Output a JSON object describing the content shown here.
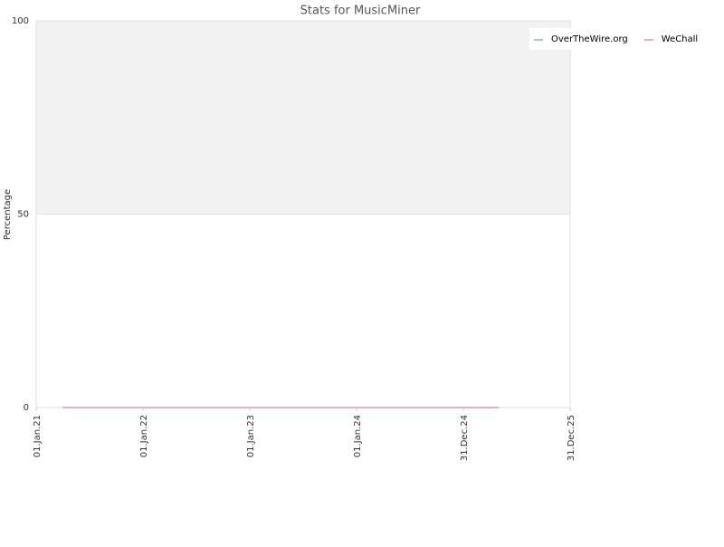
{
  "chart_data": {
    "type": "line",
    "title": "Stats for MusicMiner",
    "y_label": "Percentage",
    "x": [
      "2021-04-01",
      "2025-05-01"
    ],
    "series": [
      {
        "name": "OverTheWire.org",
        "color": "#9ecae1",
        "values": [
          0,
          0
        ]
      },
      {
        "name": "WeChall",
        "color": "#f2a7c3",
        "values": [
          0,
          0
        ]
      }
    ],
    "xlim": [
      "2021-01-01",
      "2025-12-31"
    ],
    "xticks": [
      {
        "value": "2021-01-01",
        "label": "01.Jan.21"
      },
      {
        "value": "2022-01-01",
        "label": "01.Jan.22"
      },
      {
        "value": "2023-01-01",
        "label": "01.Jan.23"
      },
      {
        "value": "2024-01-01",
        "label": "01.Jan.24"
      },
      {
        "value": "2024-12-31",
        "label": "31.Dec.24"
      },
      {
        "value": "2025-12-31",
        "label": "31.Dec.25"
      }
    ],
    "ylim": [
      0,
      100
    ],
    "yticks": [
      0,
      50,
      100
    ],
    "grid": true,
    "legend": "top-right"
  }
}
